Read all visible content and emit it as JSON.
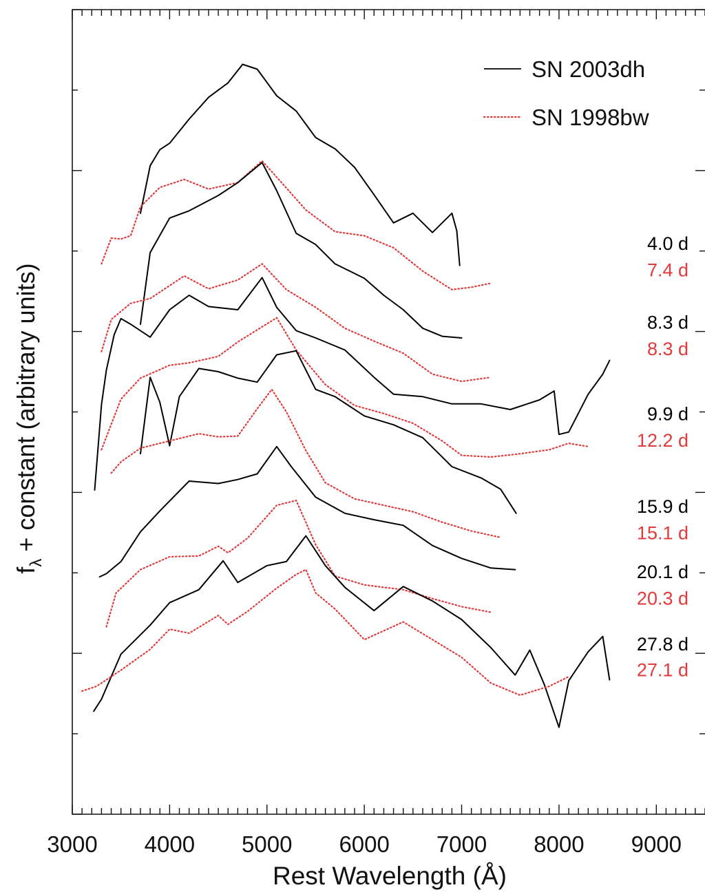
{
  "chart_data": {
    "type": "line",
    "title": "",
    "xlabel": "Rest Wavelength (Å)",
    "ylabel_main": "f",
    "ylabel_sub": "λ",
    "ylabel_rest": " + constant (arbitrary units)",
    "xlim": [
      3000,
      9500
    ],
    "xticks": [
      3000,
      4000,
      5000,
      6000,
      7000,
      8000,
      9000
    ],
    "xtick_labels": [
      "3000",
      "4000",
      "5000",
      "6000",
      "7000",
      "8000",
      "9000"
    ],
    "ylim": [
      0,
      100
    ],
    "y_tick_labels_shown": false,
    "legend": {
      "placement": "top-right",
      "entries": [
        {
          "label": "SN 2003dh",
          "color": "#000000",
          "style": "solid"
        },
        {
          "label": "SN 1998bw",
          "color": "#e03a3a",
          "style": "dotted"
        }
      ]
    },
    "colors": {
      "sn2003dh": "#000000",
      "sn1998bw": "#e03a3a"
    },
    "epoch_labels": [
      {
        "text": "4.0 d",
        "color": "#000000",
        "y": 71.1
      },
      {
        "text": "7.4 d",
        "color": "#e03a3a",
        "y": 67.8
      },
      {
        "text": "8.3 d",
        "color": "#000000",
        "y": 61.3
      },
      {
        "text": "8.3 d",
        "color": "#e03a3a",
        "y": 58.0
      },
      {
        "text": "9.9 d",
        "color": "#000000",
        "y": 49.9
      },
      {
        "text": "12.2 d",
        "color": "#e03a3a",
        "y": 46.6
      },
      {
        "text": "15.9 d",
        "color": "#000000",
        "y": 38.4
      },
      {
        "text": "15.1 d",
        "color": "#e03a3a",
        "y": 35.1
      },
      {
        "text": "20.1 d",
        "color": "#000000",
        "y": 30.3
      },
      {
        "text": "20.3 d",
        "color": "#e03a3a",
        "y": 27.0
      },
      {
        "text": "27.8 d",
        "color": "#000000",
        "y": 21.3
      },
      {
        "text": "27.1 d",
        "color": "#e03a3a",
        "y": 18.1
      }
    ],
    "series": [
      {
        "name": "SN 2003dh",
        "epoch": "4.0 d",
        "color": "#000000",
        "style": "solid",
        "x": [
          3700,
          3800,
          3900,
          4000,
          4200,
          4400,
          4600,
          4750,
          4900,
          5100,
          5300,
          5500,
          5700,
          5900,
          6100,
          6300,
          6500,
          6700,
          6900,
          6950,
          6980
        ],
        "y": [
          74.7,
          80.6,
          82.6,
          83.4,
          86.4,
          89.1,
          90.9,
          93.2,
          92.6,
          89.3,
          87.4,
          84.1,
          82.7,
          80.4,
          77.0,
          73.5,
          74.7,
          72.3,
          74.7,
          72.5,
          68.2
        ]
      },
      {
        "name": "SN 1998bw",
        "epoch": "7.4 d",
        "color": "#e03a3a",
        "style": "dotted",
        "x": [
          3300,
          3400,
          3500,
          3600,
          3700,
          3900,
          4150,
          4400,
          4700,
          4950,
          5150,
          5400,
          5700,
          6000,
          6300,
          6600,
          6900,
          7100,
          7300
        ],
        "y": [
          68.4,
          71.6,
          71.5,
          71.9,
          75.5,
          77.9,
          78.9,
          77.7,
          78.5,
          81.2,
          78.5,
          75.1,
          72.4,
          71.9,
          70.4,
          67.5,
          65.2,
          65.5,
          66.0
        ]
      },
      {
        "name": "SN 2003dh",
        "epoch": "8.3 d",
        "color": "#000000",
        "style": "solid",
        "x": [
          3700,
          3800,
          4000,
          4200,
          4500,
          4700,
          4950,
          5100,
          5300,
          5500,
          5700,
          6000,
          6200,
          6400,
          6600,
          6800,
          7000
        ],
        "y": [
          60.9,
          69.8,
          74.1,
          75.0,
          76.9,
          78.5,
          81.0,
          77.5,
          72.2,
          70.8,
          68.4,
          66.6,
          64.5,
          62.7,
          60.4,
          59.4,
          59.2
        ]
      },
      {
        "name": "SN 1998bw",
        "epoch": "8.3 d",
        "color": "#e03a3a",
        "style": "dotted",
        "x": [
          3300,
          3400,
          3600,
          3800,
          4150,
          4400,
          4700,
          4950,
          5200,
          5500,
          5800,
          6100,
          6400,
          6700,
          7000,
          7300
        ],
        "y": [
          57.5,
          61.5,
          63.5,
          64.1,
          66.9,
          65.3,
          66.4,
          68.4,
          65.2,
          63.0,
          60.4,
          58.8,
          57.3,
          54.7,
          53.8,
          54.3
        ]
      },
      {
        "name": "SN 2003dh",
        "epoch": "9.9 d",
        "color": "#000000",
        "style": "solid",
        "x": [
          3230,
          3300,
          3350,
          3430,
          3500,
          3600,
          3800,
          4000,
          4200,
          4400,
          4700,
          4950,
          5100,
          5300,
          5500,
          5800,
          6100,
          6300,
          6600,
          6900,
          7200,
          7500,
          7800,
          7950,
          8000,
          8100,
          8300,
          8450,
          8520
        ],
        "y": [
          40.3,
          50.9,
          55.2,
          59.6,
          61.6,
          60.9,
          59.3,
          62.7,
          64.5,
          63.1,
          62.7,
          66.7,
          63.0,
          60.1,
          59.2,
          57.7,
          54.3,
          52.2,
          51.9,
          51.0,
          51.0,
          50.3,
          51.5,
          52.6,
          47.2,
          47.5,
          52.2,
          54.7,
          56.4
        ]
      },
      {
        "name": "SN 1998bw",
        "epoch": "12.2 d",
        "color": "#e03a3a",
        "style": "dotted",
        "x": [
          3300,
          3500,
          3700,
          4000,
          4200,
          4500,
          4700,
          5100,
          5300,
          5600,
          5900,
          6200,
          6500,
          6800,
          7000,
          7300,
          7600,
          7900,
          8100,
          8300
        ],
        "y": [
          45.3,
          51.6,
          54.2,
          55.8,
          56.1,
          56.9,
          58.7,
          61.7,
          57.7,
          53.4,
          50.8,
          49.8,
          48.6,
          46.4,
          44.6,
          44.4,
          44.8,
          45.3,
          46.1,
          45.7
        ]
      },
      {
        "name": "SN 2003dh",
        "epoch": "15.9 d",
        "color": "#000000",
        "style": "solid",
        "x": [
          3700,
          3800,
          3900,
          4000,
          4100,
          4300,
          4500,
          4700,
          4900,
          5100,
          5300,
          5500,
          5700,
          6000,
          6300,
          6600,
          6900,
          7200,
          7400,
          7560
        ],
        "y": [
          44.8,
          54.3,
          51.2,
          45.8,
          51.9,
          55.4,
          55.0,
          54.2,
          53.7,
          57.1,
          57.6,
          52.8,
          51.9,
          49.5,
          48.4,
          46.8,
          43.2,
          41.8,
          40.4,
          37.4
        ]
      },
      {
        "name": "SN 1998bw",
        "epoch": "15.1 d",
        "color": "#e03a3a",
        "style": "dotted",
        "x": [
          3400,
          3500,
          3700,
          4000,
          4300,
          4500,
          4700,
          4900,
          5050,
          5200,
          5400,
          5600,
          5900,
          6200,
          6500,
          6800,
          7100,
          7400
        ],
        "y": [
          42.4,
          43.8,
          45.5,
          46.4,
          47.3,
          46.9,
          47.0,
          50.4,
          52.8,
          50.0,
          45.2,
          41.2,
          39.2,
          38.4,
          37.6,
          36.3,
          35.2,
          34.4
        ]
      },
      {
        "name": "SN 2003dh",
        "epoch": "20.1 d",
        "color": "#000000",
        "style": "solid",
        "x": [
          3280,
          3350,
          3500,
          3700,
          3900,
          4200,
          4500,
          4700,
          4900,
          5100,
          5250,
          5500,
          5800,
          6100,
          6400,
          6700,
          7000,
          7300,
          7550
        ],
        "y": [
          29.5,
          29.9,
          31.4,
          35.1,
          37.7,
          41.4,
          41.1,
          41.6,
          42.3,
          45.7,
          43.2,
          39.4,
          37.4,
          36.6,
          35.9,
          33.4,
          31.8,
          30.6,
          30.4
        ]
      },
      {
        "name": "SN 1998bw",
        "epoch": "20.3 d",
        "color": "#e03a3a",
        "style": "dotted",
        "x": [
          3350,
          3450,
          3700,
          4000,
          4300,
          4500,
          4600,
          4800,
          5100,
          5300,
          5500,
          5700,
          6000,
          6400,
          6700,
          7000,
          7300
        ],
        "y": [
          23.3,
          27.5,
          30.4,
          32.0,
          32.1,
          33.3,
          32.5,
          34.3,
          38.4,
          39.0,
          33.5,
          29.6,
          28.5,
          27.9,
          26.8,
          25.8,
          25.1
        ]
      },
      {
        "name": "SN 2003dh",
        "epoch": "27.8 d",
        "color": "#000000",
        "style": "solid",
        "x": [
          3220,
          3300,
          3500,
          3800,
          4000,
          4300,
          4550,
          4700,
          5000,
          5200,
          5400,
          5600,
          5800,
          6100,
          6400,
          6700,
          7000,
          7300,
          7550,
          7700,
          7850,
          8000,
          8100,
          8300,
          8450,
          8520
        ],
        "y": [
          12.8,
          14.3,
          19.9,
          23.5,
          26.3,
          27.9,
          31.5,
          28.8,
          30.9,
          31.4,
          34.6,
          30.9,
          28.2,
          25.3,
          28.3,
          26.5,
          24.2,
          20.7,
          17.3,
          20.4,
          16.1,
          10.8,
          16.6,
          20.2,
          22.1,
          16.7
        ]
      },
      {
        "name": "SN 1998bw",
        "epoch": "27.1 d",
        "color": "#e03a3a",
        "style": "dotted",
        "x": [
          3100,
          3250,
          3500,
          3800,
          4000,
          4200,
          4500,
          4600,
          4800,
          5100,
          5300,
          5400,
          5500,
          5700,
          6000,
          6400,
          6700,
          7000,
          7300,
          7600,
          7900,
          8100
        ],
        "y": [
          15.3,
          15.9,
          17.9,
          20.5,
          23.0,
          22.5,
          24.7,
          23.6,
          25.2,
          28.1,
          29.8,
          30.4,
          27.5,
          25.5,
          21.7,
          23.9,
          21.7,
          19.5,
          16.3,
          14.8,
          15.9,
          17.1
        ]
      }
    ]
  }
}
